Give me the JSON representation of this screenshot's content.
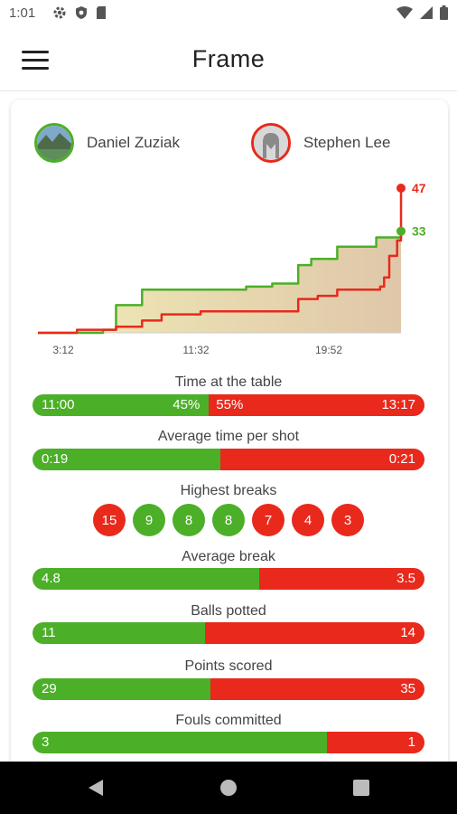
{
  "status": {
    "time": "1:01"
  },
  "app": {
    "title": "Frame"
  },
  "players": [
    {
      "name": "Daniel Zuziak",
      "color": "#4caf28"
    },
    {
      "name": "Stephen Lee",
      "color": "#e8291c"
    }
  ],
  "chart_data": {
    "type": "line",
    "x_ticks": [
      "3:12",
      "11:32",
      "19:52"
    ],
    "series": [
      {
        "color": "#e8291c",
        "end_label": "47",
        "x": [
          0,
          3,
          6,
          8,
          9.5,
          10,
          12.5,
          14,
          18,
          20,
          21.5,
          23,
          25,
          26.3,
          26.6,
          27,
          27.6,
          27.9
        ],
        "y": [
          0,
          1,
          2,
          4,
          6,
          6,
          7,
          7,
          7,
          11,
          12,
          14,
          14,
          15,
          18,
          25,
          30,
          47
        ]
      },
      {
        "color": "#4caf28",
        "end_label": "33",
        "x": [
          0,
          5,
          6,
          8,
          9,
          10,
          11,
          14,
          16,
          18,
          20,
          21,
          23,
          23.6,
          26,
          27.9
        ],
        "y": [
          0,
          1,
          9,
          14,
          14,
          14,
          14,
          14,
          15,
          16,
          22,
          24,
          28,
          28,
          31,
          33
        ]
      }
    ]
  },
  "stats": [
    {
      "label": "Time at the table",
      "left": "11:00",
      "right": "13:17",
      "left_pct": "45%",
      "right_pct": "55%",
      "left_frac": 0.45
    },
    {
      "label": "Average time per shot",
      "left": "0:19",
      "right": "0:21",
      "left_frac": 0.48
    },
    {
      "label": "Average break",
      "left": "4.8",
      "right": "3.5",
      "left_frac": 0.578
    },
    {
      "label": "Balls potted",
      "left": "11",
      "right": "14",
      "left_frac": 0.44
    },
    {
      "label": "Points scored",
      "left": "29",
      "right": "35",
      "left_frac": 0.453
    },
    {
      "label": "Fouls committed",
      "left": "3",
      "right": "1",
      "left_frac": 0.75
    }
  ],
  "highest_breaks": {
    "label": "Highest breaks",
    "balls": [
      {
        "value": "15",
        "color": "#e8291c"
      },
      {
        "value": "9",
        "color": "#4caf28"
      },
      {
        "value": "8",
        "color": "#4caf28"
      },
      {
        "value": "8",
        "color": "#4caf28"
      },
      {
        "value": "7",
        "color": "#e8291c"
      },
      {
        "value": "4",
        "color": "#e8291c"
      },
      {
        "value": "3",
        "color": "#e8291c"
      }
    ]
  },
  "colors": {
    "green": "#4caf28",
    "red": "#e8291c"
  }
}
